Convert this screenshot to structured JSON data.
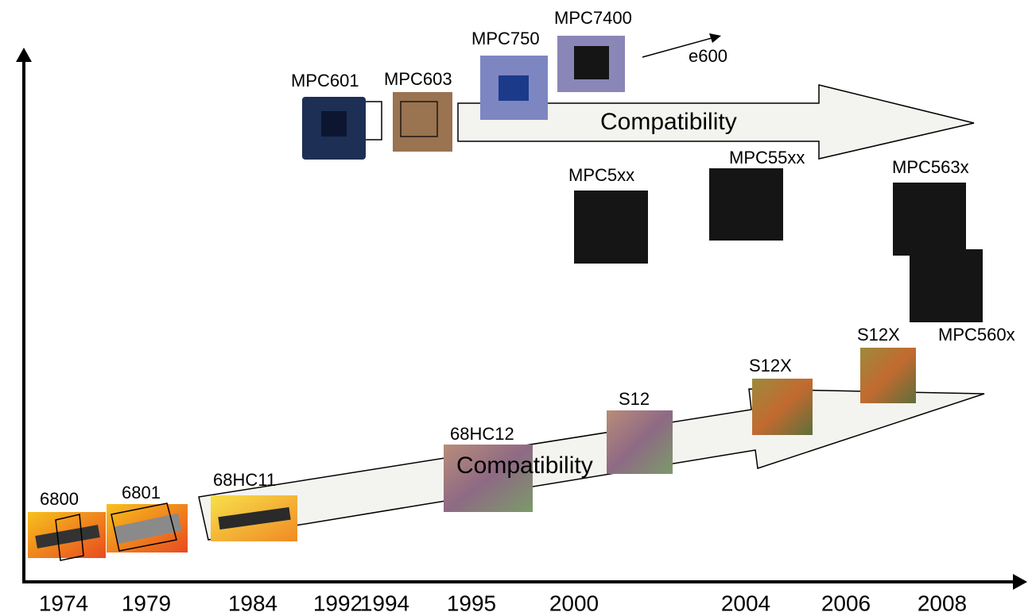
{
  "years": [
    "1974",
    "1979",
    "1984",
    "1992",
    "1994",
    "1995",
    "2000",
    "2004",
    "2006",
    "2008"
  ],
  "chips": [
    {
      "label": "6800"
    },
    {
      "label": "6801"
    },
    {
      "label": "68HC11"
    },
    {
      "label": "68HC12"
    },
    {
      "label": "S12"
    },
    {
      "label": "S12X"
    },
    {
      "label": "S12X"
    },
    {
      "label": "MPC560x"
    },
    {
      "label": "MPC563x"
    },
    {
      "label": "MPC55xx"
    },
    {
      "label": "MPC5xx"
    },
    {
      "label": "MPC601"
    },
    {
      "label": "MPC603"
    },
    {
      "label": "MPC750"
    },
    {
      "label": "MPC7400"
    }
  ],
  "arrows": {
    "top": "Compatibility",
    "bottom": "Compatibility",
    "next": "e600"
  }
}
